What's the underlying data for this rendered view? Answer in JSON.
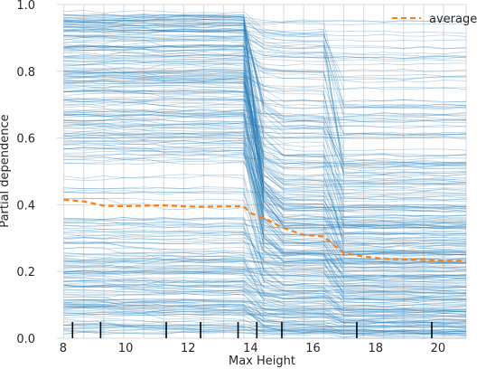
{
  "chart_data": {
    "type": "line",
    "xlabel": "Max Height",
    "ylabel": "Partial dependence",
    "xlim": [
      7.8,
      20.9
    ],
    "ylim": [
      0.0,
      1.0
    ],
    "grid": true,
    "legend": {
      "placement": "top-right",
      "entries": [
        "average"
      ]
    },
    "x_ticks": [
      8,
      10,
      12,
      14,
      16,
      18,
      20
    ],
    "x_tick_labels": [
      "8",
      "10",
      "12",
      "14",
      "16",
      "18",
      "20"
    ],
    "y_ticks": [
      0.0,
      0.2,
      0.4,
      0.6,
      0.8,
      1.0
    ],
    "y_tick_labels": [
      "0.0",
      "0.2",
      "0.4",
      "0.6",
      "0.8",
      "1.0"
    ],
    "grid_x": [
      8.02,
      8.66,
      9.3,
      9.94,
      10.58,
      11.22,
      11.86,
      12.5,
      13.14,
      13.78,
      14.42,
      15.06,
      15.7,
      16.34,
      16.98,
      17.62,
      18.26,
      18.9,
      19.54,
      20.18,
      20.9
    ],
    "steps": [
      {
        "x": 13.95,
        "width": 0.55
      },
      {
        "x": 16.8,
        "width": 0.3
      },
      {
        "x": 17.35,
        "width": 0.25
      }
    ],
    "individual_curves": {
      "count": 300,
      "color": "#1f77b4",
      "opacity": 0.35
    },
    "series": [
      {
        "name": "average",
        "color": "#ff7f0e",
        "style": "dashed",
        "x": [
          8.02,
          8.66,
          9.3,
          9.94,
          10.58,
          11.22,
          11.86,
          12.5,
          13.14,
          13.78,
          14.0,
          14.42,
          15.06,
          15.7,
          16.34,
          16.98,
          17.62,
          18.26,
          18.9,
          19.54,
          20.18,
          20.9
        ],
        "y": [
          0.415,
          0.41,
          0.397,
          0.396,
          0.397,
          0.398,
          0.395,
          0.394,
          0.395,
          0.395,
          0.375,
          0.36,
          0.33,
          0.31,
          0.305,
          0.255,
          0.245,
          0.238,
          0.236,
          0.235,
          0.232,
          0.232
        ]
      }
    ],
    "rug": [
      8.3,
      9.2,
      11.3,
      12.4,
      13.6,
      14.2,
      15.0,
      17.4,
      19.8
    ]
  }
}
